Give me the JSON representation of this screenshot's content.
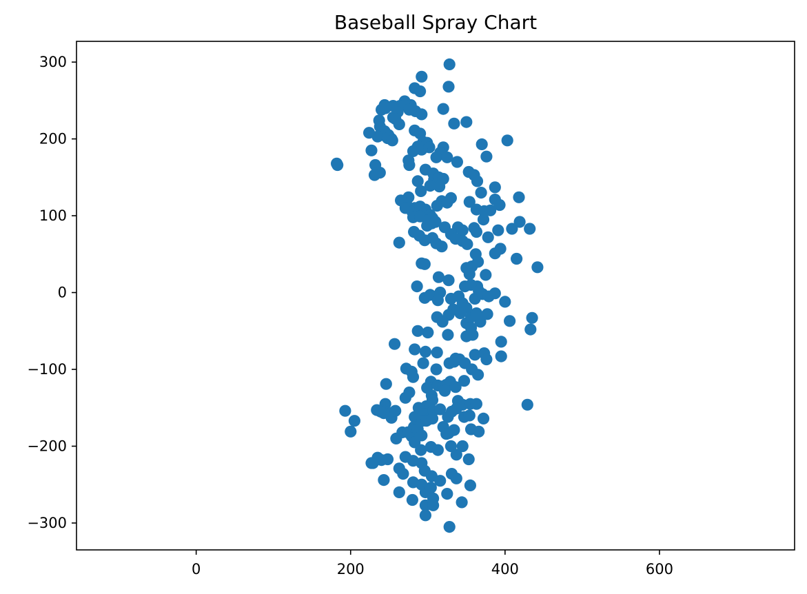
{
  "chart_data": {
    "type": "scatter",
    "title": "Baseball Spray Chart",
    "xlabel": "",
    "ylabel": "",
    "xlim": [
      -155,
      775
    ],
    "ylim": [
      -335,
      327
    ],
    "grid": false,
    "legend": "none",
    "x_ticks": [
      0,
      200,
      400,
      600
    ],
    "y_ticks": [
      300,
      200,
      100,
      0,
      -100,
      -200,
      -300
    ],
    "x_tick_labels": [
      "0",
      "200",
      "400",
      "600"
    ],
    "y_tick_labels": [
      "300",
      "200",
      "100",
      "0",
      "−100",
      "−200",
      "−300"
    ],
    "series": [
      {
        "color": "#1f77b4",
        "points": [
          [
            292,
            281
          ],
          [
            328,
            297
          ],
          [
            327,
            268
          ],
          [
            283,
            266
          ],
          [
            290,
            262
          ],
          [
            270,
            249
          ],
          [
            278,
            244
          ],
          [
            264,
            243
          ],
          [
            244,
            244
          ],
          [
            255,
            243
          ],
          [
            240,
            238
          ],
          [
            245,
            240
          ],
          [
            261,
            235
          ],
          [
            276,
            238
          ],
          [
            284,
            236
          ],
          [
            292,
            232
          ],
          [
            320,
            239
          ],
          [
            255,
            228
          ],
          [
            237,
            224
          ],
          [
            258,
            226
          ],
          [
            263,
            219
          ],
          [
            238,
            216
          ],
          [
            244,
            210
          ],
          [
            241,
            205
          ],
          [
            235,
            203
          ],
          [
            224,
            208
          ],
          [
            249,
            205
          ],
          [
            253,
            200
          ],
          [
            248,
            201
          ],
          [
            254,
            198
          ],
          [
            350,
            222
          ],
          [
            334,
            220
          ],
          [
            283,
            211
          ],
          [
            290,
            207
          ],
          [
            294,
            196
          ],
          [
            299,
            195
          ],
          [
            302,
            189
          ],
          [
            292,
            186
          ],
          [
            287,
            190
          ],
          [
            281,
            184
          ],
          [
            320,
            189
          ],
          [
            316,
            182
          ],
          [
            311,
            176
          ],
          [
            325,
            176
          ],
          [
            338,
            170
          ],
          [
            370,
            193
          ],
          [
            403,
            198
          ],
          [
            376,
            177
          ],
          [
            227,
            185
          ],
          [
            182,
            168
          ],
          [
            183,
            166
          ],
          [
            232,
            166
          ],
          [
            238,
            156
          ],
          [
            231,
            153
          ],
          [
            275,
            172
          ],
          [
            276,
            166
          ],
          [
            297,
            160
          ],
          [
            307,
            155
          ],
          [
            308,
            147
          ],
          [
            314,
            150
          ],
          [
            320,
            148
          ],
          [
            315,
            138
          ],
          [
            303,
            139
          ],
          [
            287,
            145
          ],
          [
            291,
            132
          ],
          [
            353,
            157
          ],
          [
            360,
            153
          ],
          [
            364,
            145
          ],
          [
            369,
            130
          ],
          [
            387,
            137
          ],
          [
            418,
            124
          ],
          [
            275,
            124
          ],
          [
            272,
            116
          ],
          [
            265,
            120
          ],
          [
            271,
            110
          ],
          [
            283,
            110
          ],
          [
            280,
            105
          ],
          [
            290,
            112
          ],
          [
            295,
            103
          ],
          [
            297,
            108
          ],
          [
            303,
            101
          ],
          [
            312,
            113
          ],
          [
            318,
            119
          ],
          [
            325,
            117
          ],
          [
            330,
            123
          ],
          [
            354,
            118
          ],
          [
            363,
            108
          ],
          [
            373,
            106
          ],
          [
            381,
            107
          ],
          [
            387,
            121
          ],
          [
            393,
            114
          ],
          [
            281,
            98
          ],
          [
            290,
            99
          ],
          [
            300,
            94
          ],
          [
            306,
            97
          ],
          [
            299,
            87
          ],
          [
            305,
            90
          ],
          [
            310,
            92
          ],
          [
            322,
            85
          ],
          [
            339,
            85
          ],
          [
            345,
            81
          ],
          [
            360,
            84
          ],
          [
            372,
            95
          ],
          [
            391,
            81
          ],
          [
            409,
            83
          ],
          [
            419,
            92
          ],
          [
            432,
            83
          ],
          [
            282,
            79
          ],
          [
            289,
            74
          ],
          [
            296,
            68
          ],
          [
            306,
            71
          ],
          [
            311,
            64
          ],
          [
            318,
            60
          ],
          [
            330,
            76
          ],
          [
            336,
            70
          ],
          [
            345,
            67
          ],
          [
            351,
            63
          ],
          [
            363,
            79
          ],
          [
            378,
            72
          ],
          [
            387,
            51
          ],
          [
            394,
            57
          ],
          [
            415,
            44
          ],
          [
            263,
            65
          ],
          [
            292,
            38
          ],
          [
            296,
            37
          ],
          [
            362,
            50
          ],
          [
            365,
            40
          ],
          [
            357,
            34
          ],
          [
            350,
            32
          ],
          [
            354,
            24
          ],
          [
            375,
            23
          ],
          [
            442,
            33
          ],
          [
            286,
            8
          ],
          [
            314,
            20
          ],
          [
            327,
            16
          ],
          [
            348,
            8
          ],
          [
            356,
            10
          ],
          [
            364,
            8
          ],
          [
            366,
            2
          ],
          [
            361,
            -8
          ],
          [
            371,
            -2
          ],
          [
            379,
            -5
          ],
          [
            387,
            -1
          ],
          [
            400,
            -12
          ],
          [
            296,
            -7
          ],
          [
            303,
            -3
          ],
          [
            316,
            0
          ],
          [
            313,
            -10
          ],
          [
            330,
            -8
          ],
          [
            340,
            -5
          ],
          [
            345,
            -14
          ],
          [
            350,
            -20
          ],
          [
            342,
            -27
          ],
          [
            333,
            -22
          ],
          [
            327,
            -29
          ],
          [
            312,
            -32
          ],
          [
            319,
            -38
          ],
          [
            350,
            -40
          ],
          [
            356,
            -32
          ],
          [
            363,
            -27
          ],
          [
            368,
            -38
          ],
          [
            377,
            -28
          ],
          [
            406,
            -37
          ],
          [
            435,
            -33
          ],
          [
            433,
            -48
          ],
          [
            356,
            -46
          ],
          [
            358,
            -55
          ],
          [
            350,
            -57
          ],
          [
            326,
            -55
          ],
          [
            300,
            -52
          ],
          [
            287,
            -50
          ],
          [
            257,
            -67
          ],
          [
            283,
            -74
          ],
          [
            297,
            -77
          ],
          [
            312,
            -78
          ],
          [
            328,
            -92
          ],
          [
            334,
            -90
          ],
          [
            336,
            -86
          ],
          [
            341,
            -87
          ],
          [
            348,
            -92
          ],
          [
            361,
            -81
          ],
          [
            373,
            -79
          ],
          [
            376,
            -87
          ],
          [
            395,
            -83
          ],
          [
            395,
            -64
          ],
          [
            294,
            -92
          ],
          [
            311,
            -100
          ],
          [
            329,
            -116
          ],
          [
            347,
            -115
          ],
          [
            357,
            -100
          ],
          [
            365,
            -107
          ],
          [
            272,
            -99
          ],
          [
            279,
            -103
          ],
          [
            281,
            -110
          ],
          [
            304,
            -116
          ],
          [
            299,
            -124
          ],
          [
            313,
            -121
          ],
          [
            320,
            -122
          ],
          [
            324,
            -120
          ],
          [
            336,
            -123
          ],
          [
            322,
            -128
          ],
          [
            305,
            -134
          ],
          [
            306,
            -140
          ],
          [
            298,
            -148
          ],
          [
            246,
            -119
          ],
          [
            271,
            -137
          ],
          [
            276,
            -130
          ],
          [
            283,
            -162
          ],
          [
            288,
            -150
          ],
          [
            295,
            -158
          ],
          [
            301,
            -165
          ],
          [
            307,
            -154
          ],
          [
            316,
            -152
          ],
          [
            339,
            -141
          ],
          [
            345,
            -146
          ],
          [
            355,
            -145
          ],
          [
            363,
            -145
          ],
          [
            372,
            -164
          ],
          [
            429,
            -146
          ],
          [
            245,
            -145
          ],
          [
            244,
            -155
          ],
          [
            252,
            -157
          ],
          [
            243,
            -157
          ],
          [
            234,
            -153
          ],
          [
            239,
            -155
          ],
          [
            200,
            -181
          ],
          [
            205,
            -167
          ],
          [
            193,
            -154
          ],
          [
            253,
            -163
          ],
          [
            258,
            -154
          ],
          [
            267,
            -182
          ],
          [
            274,
            -182
          ],
          [
            279,
            -187
          ],
          [
            282,
            -175
          ],
          [
            287,
            -178
          ],
          [
            293,
            -167
          ],
          [
            298,
            -167
          ],
          [
            306,
            -164
          ],
          [
            326,
            -162
          ],
          [
            331,
            -155
          ],
          [
            337,
            -151
          ],
          [
            347,
            -162
          ],
          [
            354,
            -160
          ],
          [
            320,
            -175
          ],
          [
            327,
            -183
          ],
          [
            334,
            -179
          ],
          [
            356,
            -178
          ],
          [
            366,
            -181
          ],
          [
            259,
            -190
          ],
          [
            283,
            -195
          ],
          [
            291,
            -205
          ],
          [
            304,
            -201
          ],
          [
            313,
            -205
          ],
          [
            330,
            -200
          ],
          [
            337,
            -211
          ],
          [
            345,
            -200
          ],
          [
            353,
            -217
          ],
          [
            240,
            -218
          ],
          [
            235,
            -215
          ],
          [
            229,
            -222
          ],
          [
            248,
            -217
          ],
          [
            263,
            -229
          ],
          [
            271,
            -214
          ],
          [
            281,
            -219
          ],
          [
            292,
            -222
          ],
          [
            296,
            -232
          ],
          [
            305,
            -239
          ],
          [
            316,
            -245
          ],
          [
            331,
            -236
          ],
          [
            337,
            -242
          ],
          [
            355,
            -251
          ],
          [
            263,
            -260
          ],
          [
            268,
            -236
          ],
          [
            281,
            -247
          ],
          [
            292,
            -250
          ],
          [
            297,
            -260
          ],
          [
            304,
            -254
          ],
          [
            307,
            -268
          ],
          [
            280,
            -270
          ],
          [
            297,
            -277
          ],
          [
            307,
            -277
          ],
          [
            297,
            -290
          ],
          [
            344,
            -273
          ],
          [
            325,
            -262
          ],
          [
            328,
            -305
          ],
          [
            243,
            -244
          ],
          [
            227,
            -222
          ],
          [
            292,
            -186
          ],
          [
            324,
            -184
          ],
          [
            363,
            -29
          ]
        ]
      }
    ]
  }
}
